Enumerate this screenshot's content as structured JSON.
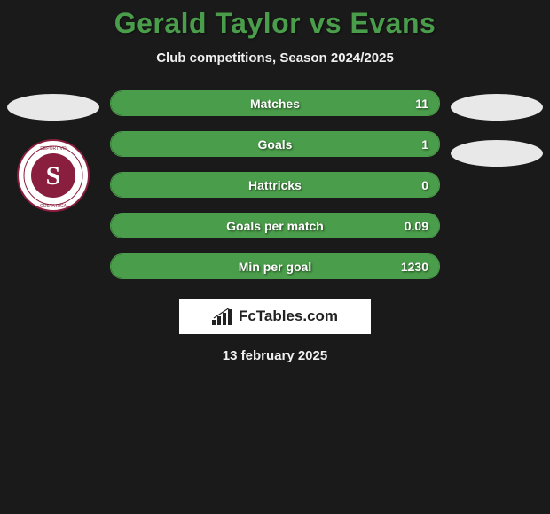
{
  "title": "Gerald Taylor vs Evans",
  "subtitle": "Club competitions, Season 2024/2025",
  "date": "13 february 2025",
  "brand": "FcTables.com",
  "colors": {
    "accent": "#4a9d4a",
    "bg": "#1a1a1a",
    "bar_bg": "#2a2a2a",
    "text": "#ffffff",
    "placeholder": "#e8e8e8",
    "crest_ring": "#8a1e3f",
    "crest_inner": "#ffffff"
  },
  "stats": [
    {
      "label": "Matches",
      "value": "11",
      "fill_pct": 100
    },
    {
      "label": "Goals",
      "value": "1",
      "fill_pct": 100
    },
    {
      "label": "Hattricks",
      "value": "0",
      "fill_pct": 100
    },
    {
      "label": "Goals per match",
      "value": "0.09",
      "fill_pct": 100
    },
    {
      "label": "Min per goal",
      "value": "1230",
      "fill_pct": 100
    }
  ],
  "left_player": {
    "has_photo_placeholder": true,
    "has_crest": true,
    "crest_letter": "S"
  },
  "right_player": {
    "has_photo_placeholder_count": 2
  }
}
